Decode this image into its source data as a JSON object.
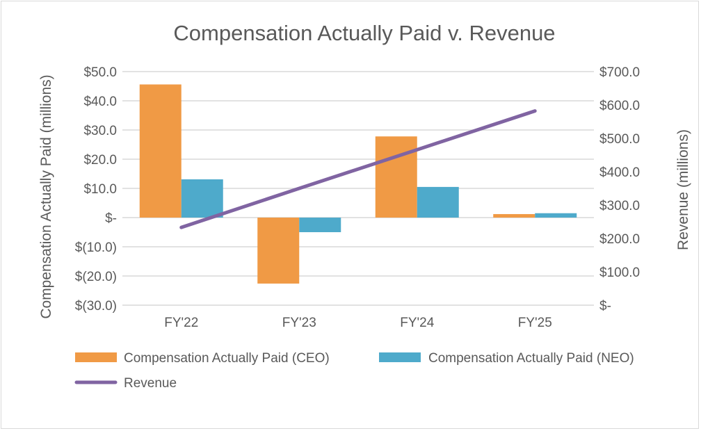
{
  "chart_data": {
    "type": "bar+line",
    "title": "Compensation Actually Paid v. Revenue",
    "categories": [
      "FY'22",
      "FY'23",
      "FY'24",
      "FY'25"
    ],
    "y_left": {
      "label": "Compensation Actually Paid (millions)",
      "range": [
        -30,
        50
      ],
      "ticks": [
        "$(30.0)",
        "$(20.0)",
        "$(10.0)",
        "$-",
        "$10.0",
        "$20.0",
        "$30.0",
        "$40.0",
        "$50.0"
      ]
    },
    "y_right": {
      "label": "Revenue (millions)",
      "range": [
        0,
        700
      ],
      "ticks": [
        "$-",
        "$100.0",
        "$200.0",
        "$300.0",
        "$400.0",
        "$500.0",
        "$600.0",
        "$700.0"
      ]
    },
    "grid": true,
    "legend_position": "bottom",
    "series": [
      {
        "name": "Compensation Actually Paid (CEO)",
        "type": "bar",
        "axis": "left",
        "color": "#f09a45",
        "values": [
          45.6,
          -22.6,
          27.8,
          1.2
        ]
      },
      {
        "name": "Compensation Actually Paid (NEO)",
        "type": "bar",
        "axis": "left",
        "color": "#4eaacb",
        "values": [
          13.1,
          -5.0,
          10.5,
          1.5
        ]
      },
      {
        "name": "Revenue",
        "type": "line",
        "axis": "right",
        "color": "#8064a2",
        "values": [
          233,
          350,
          466,
          582
        ]
      }
    ]
  }
}
